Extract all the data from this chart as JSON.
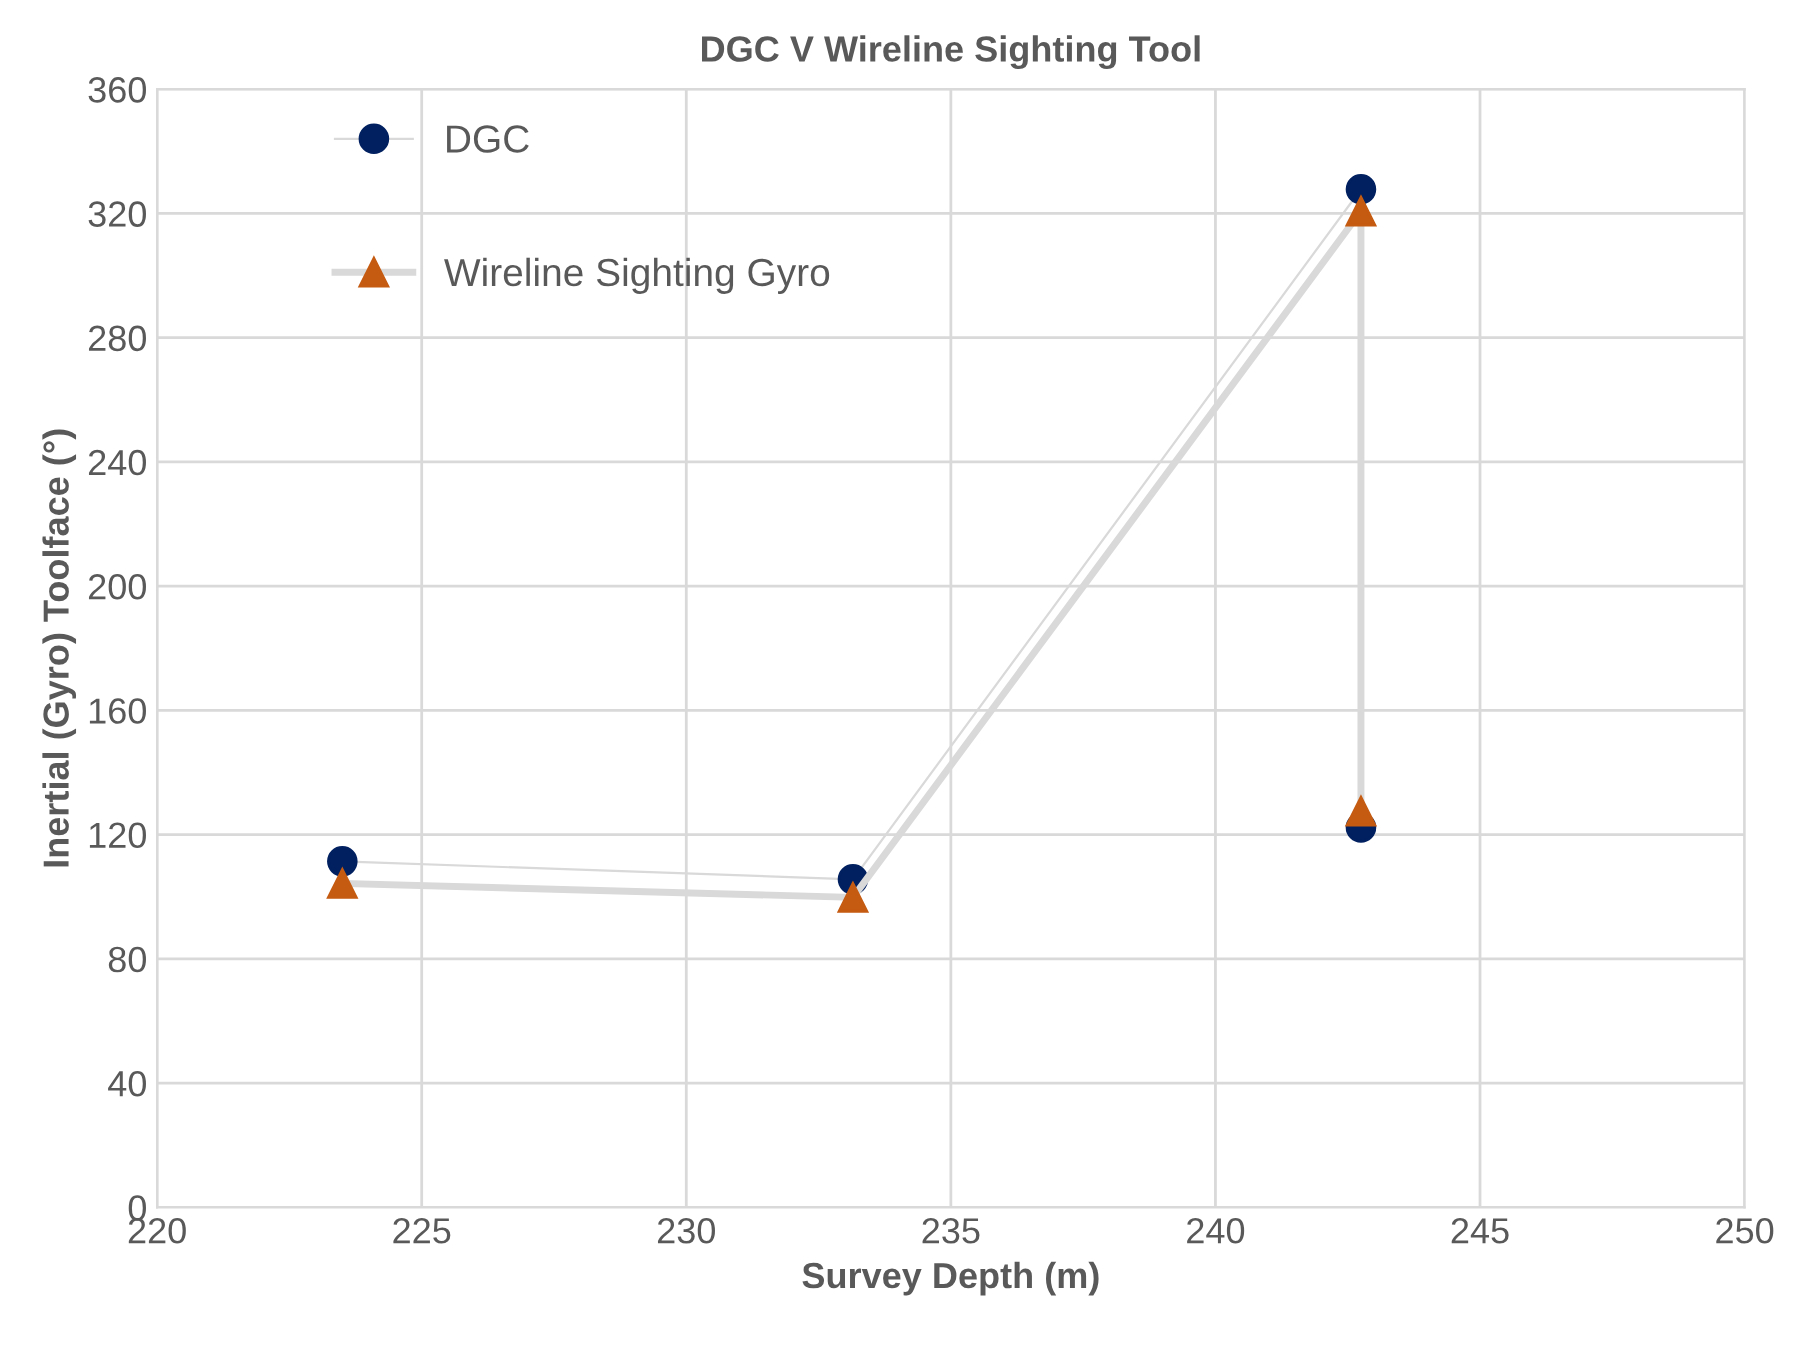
{
  "chart_data": {
    "type": "line",
    "title": "DGC V Wireline Sighting Tool",
    "xlabel": "Survey Depth (m)",
    "ylabel": "Inertial (Gyro) Toolface (°)",
    "series": [
      {
        "name": "DGC",
        "color": "#002060",
        "marker": "circle",
        "x": [
          223.5,
          233.15,
          242.75,
          242.75
        ],
        "values": [
          111.4,
          105.6,
          327.8,
          122.3
        ]
      },
      {
        "name": "Wireline Sighting Gyro",
        "color": "#c55a11",
        "marker": "triangle",
        "x": [
          223.5,
          233.15,
          242.75,
          242.75
        ],
        "values": [
          104.3,
          99.8,
          320.7,
          127.5
        ]
      }
    ],
    "xlim": [
      220,
      250
    ],
    "xticks": [
      220,
      225,
      230,
      235,
      240,
      245,
      250
    ],
    "ylim": [
      0,
      360
    ],
    "yticks": [
      0,
      40,
      80,
      120,
      160,
      200,
      240,
      280,
      320,
      360
    ],
    "grid": true,
    "legend": "top left"
  }
}
